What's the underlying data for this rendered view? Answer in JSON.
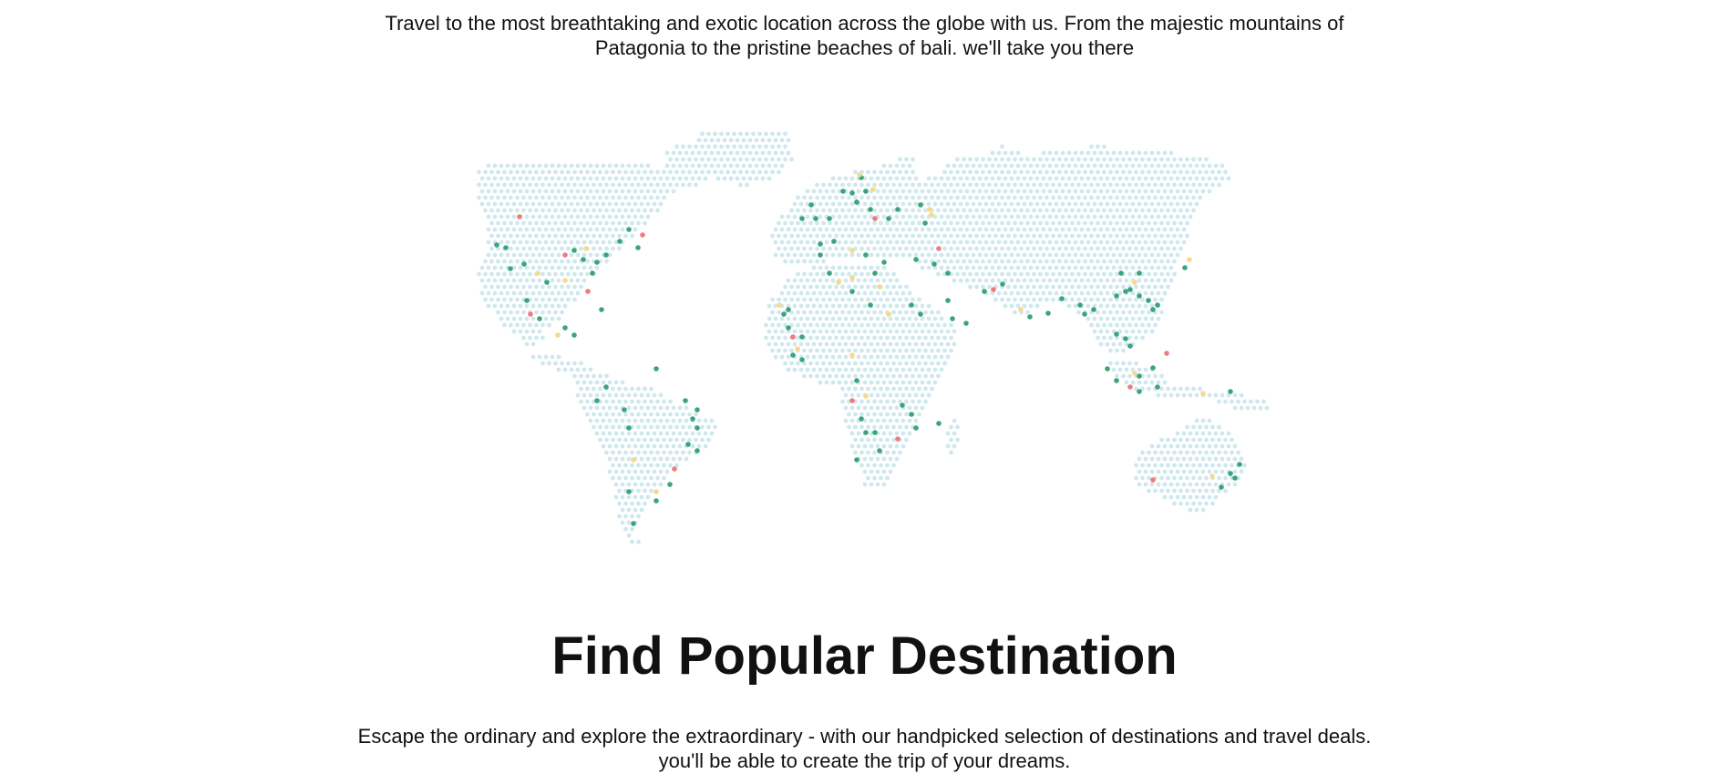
{
  "intro": {
    "line1": "Travel to the most breathtaking and exotic location across the globe with us. From the majestic mountains of",
    "line2": "Patagonia to the pristine beaches of bali. we'll take you there"
  },
  "map": {
    "colors": {
      "land": "#cfe8ee",
      "green": "#3aa57a",
      "red": "#ef7b7b",
      "yellow": "#f7d98b"
    }
  },
  "section": {
    "title": "Find Popular Destination",
    "line1": "Escape the ordinary and explore the extraordinary - with our handpicked selection of destinations and travel deals.",
    "line2": "you'll be able to create the trip of your dreams."
  }
}
